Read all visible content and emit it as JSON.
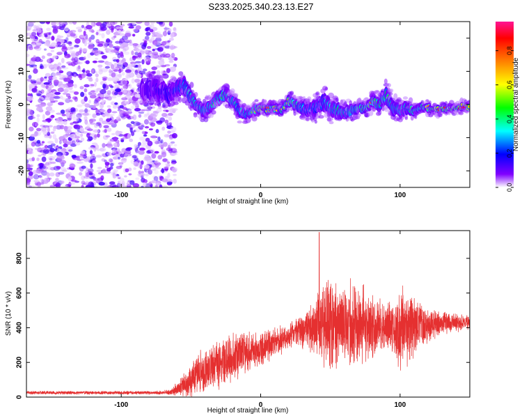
{
  "figure": {
    "title": "S233.2025.340.23.13.E27"
  },
  "colors": {
    "trace": "#e53030",
    "axis": "#000000",
    "background": "#ffffff"
  },
  "chart_data": [
    {
      "type": "heatmap",
      "title": "S233.2025.340.23.13.E27",
      "xlabel": "Height of straight line (km)",
      "ylabel": "Frequency (Hz)",
      "xlim": [
        -168,
        150
      ],
      "ylim": [
        -25,
        25
      ],
      "xticks": [
        -100,
        0,
        100
      ],
      "yticks": [
        -20,
        -10,
        0,
        10,
        20
      ],
      "colorbar": {
        "label": "Normalized spectral amplitude",
        "range": [
          0,
          0.97
        ],
        "ticks": [
          0.0,
          0.2,
          0.4,
          0.6,
          0.8
        ],
        "colormap": [
          "#ffffff",
          "#8000ff",
          "#0000ff",
          "#00ffff",
          "#00ff00",
          "#ffff00",
          "#ff8000",
          "#ff0000",
          "#ff1493"
        ]
      },
      "noise_region": {
        "x_range": [
          -168,
          -65
        ],
        "y_range": [
          -25,
          25
        ],
        "typical_amplitude": 0.1
      },
      "ridge": {
        "x": [
          -85,
          -75,
          -65,
          -60,
          -55,
          -50,
          -45,
          -40,
          -35,
          -30,
          -25,
          -20,
          -15,
          -10,
          -5,
          0,
          5,
          10,
          15,
          20,
          25,
          30,
          35,
          40,
          45,
          50,
          55,
          60,
          65,
          70,
          75,
          80,
          85,
          90,
          95,
          100,
          105,
          110,
          115,
          120,
          125,
          130,
          135,
          140,
          145,
          150
        ],
        "y": [
          4,
          5,
          3,
          5,
          6,
          2,
          -1,
          -2,
          0,
          2,
          3,
          1,
          -2,
          -3,
          -2,
          -1,
          -1.5,
          -1,
          -1.5,
          1,
          0,
          -1,
          -2,
          -1,
          1,
          -1,
          -2,
          -2.5,
          -2,
          -1,
          -1,
          1,
          0,
          3,
          -1,
          -2,
          -1,
          -2,
          -1,
          -1,
          -1.5,
          -1.5,
          -1,
          -1,
          -0.5,
          -1
        ],
        "amplitude": [
          0.1,
          0.15,
          0.2,
          0.3,
          0.35,
          0.4,
          0.45,
          0.5,
          0.45,
          0.5,
          0.55,
          0.45,
          0.4,
          0.4,
          0.7,
          0.85,
          0.8,
          0.75,
          0.55,
          0.9,
          0.5,
          0.35,
          0.3,
          0.3,
          0.35,
          0.4,
          0.5,
          0.5,
          0.45,
          0.55,
          0.7,
          0.75,
          0.5,
          0.5,
          0.45,
          0.45,
          0.5,
          0.6,
          0.5,
          0.7,
          0.9,
          0.9,
          0.8,
          0.85,
          0.95,
          0.9
        ],
        "width": [
          3,
          3,
          3,
          2.5,
          2.5,
          2.5,
          2,
          2,
          2,
          2,
          2,
          2,
          2,
          1.5,
          1.5,
          1.2,
          1.2,
          1.2,
          1.3,
          1.5,
          1.8,
          2,
          2.2,
          2.5,
          2.5,
          2.5,
          2.2,
          2,
          2,
          1.5,
          1.5,
          1.8,
          2,
          2.5,
          2.5,
          2.2,
          1.8,
          1.5,
          1.2,
          1.2,
          1,
          1,
          1,
          1,
          1,
          1
        ]
      }
    },
    {
      "type": "line",
      "xlabel": "Height of straight line (km)",
      "ylabel": "SNR (10 * v/v)",
      "xlim": [
        -168,
        150
      ],
      "ylim": [
        0,
        960
      ],
      "xticks": [
        -100,
        0,
        100
      ],
      "yticks": [
        0,
        200,
        400,
        600,
        800
      ],
      "series": [
        {
          "name": "SNR",
          "color": "#e53030",
          "x": [
            -168,
            -150,
            -130,
            -110,
            -90,
            -75,
            -65,
            -60,
            -55,
            -50,
            -45,
            -40,
            -35,
            -30,
            -25,
            -20,
            -15,
            -10,
            -5,
            0,
            5,
            10,
            15,
            20,
            25,
            30,
            35,
            40,
            45,
            50,
            55,
            60,
            65,
            70,
            75,
            80,
            85,
            90,
            95,
            100,
            105,
            110,
            115,
            120,
            125,
            130,
            135,
            140,
            145,
            150
          ],
          "center": [
            25,
            25,
            25,
            25,
            25,
            25,
            28,
            45,
            70,
            100,
            130,
            150,
            170,
            190,
            210,
            230,
            250,
            260,
            270,
            280,
            300,
            310,
            330,
            350,
            370,
            390,
            400,
            410,
            420,
            430,
            420,
            410,
            420,
            420,
            410,
            400,
            400,
            410,
            400,
            400,
            400,
            410,
            420,
            420,
            420,
            430,
            430,
            430,
            430,
            430
          ],
          "spread": [
            12,
            12,
            12,
            12,
            12,
            12,
            18,
            45,
            80,
            110,
            140,
            150,
            150,
            160,
            150,
            150,
            150,
            140,
            130,
            130,
            120,
            100,
            90,
            90,
            100,
            120,
            150,
            200,
            280,
            300,
            280,
            260,
            280,
            270,
            250,
            220,
            180,
            150,
            200,
            280,
            260,
            200,
            150,
            110,
            90,
            80,
            70,
            60,
            55,
            50
          ],
          "peak_annotation": {
            "x": 42,
            "y": 950
          }
        }
      ]
    }
  ]
}
